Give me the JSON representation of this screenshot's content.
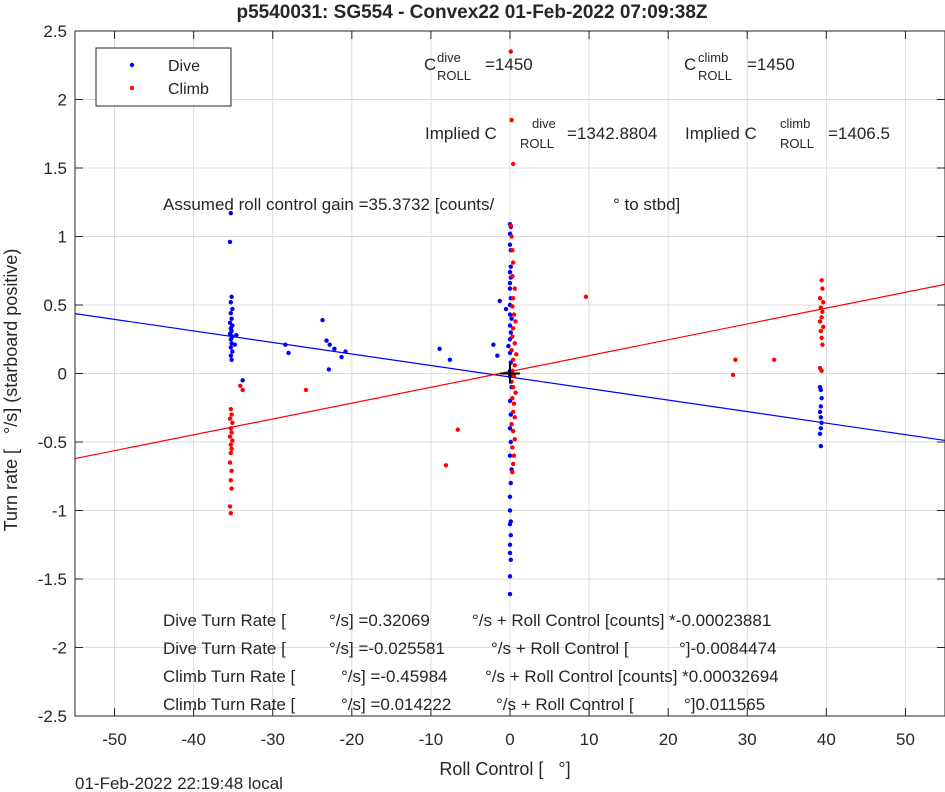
{
  "chart_data": {
    "type": "scatter",
    "title": "p5540031: SG554 - Convex22 01-Feb-2022 07:09:38Z",
    "xlabel": "Roll Control [   °]",
    "ylabel": "Turn rate [   °/s] (starboard positive)",
    "xlim": [
      -55,
      55
    ],
    "ylim": [
      -2.5,
      2.5
    ],
    "xticks": [
      -50,
      -40,
      -30,
      -20,
      -10,
      0,
      10,
      20,
      30,
      40,
      50
    ],
    "yticks": [
      -2.5,
      -2,
      -1.5,
      -1,
      -0.5,
      0,
      0.5,
      1,
      1.5,
      2,
      2.5
    ],
    "xtick_labels": [
      "-50",
      "-40",
      "-30",
      "-20",
      "-10",
      "0",
      "10",
      "20",
      "30",
      "40",
      "50"
    ],
    "ytick_labels": [
      "-2.5",
      "-2",
      "-1.5",
      "-1",
      "-0.5",
      "0",
      "0.5",
      "1",
      "1.5",
      "2",
      "2.5"
    ],
    "grid": true,
    "legend": {
      "placement": "top-left",
      "entries": [
        "Dive",
        "Climb"
      ]
    },
    "series": [
      {
        "name": "Dive",
        "color": "#0000ff",
        "points": [
          [
            -35.3,
            1.17
          ],
          [
            -35.4,
            0.96
          ],
          [
            -35.2,
            0.56
          ],
          [
            -35.3,
            0.52
          ],
          [
            -35.1,
            0.47
          ],
          [
            -35.3,
            0.44
          ],
          [
            -35.2,
            0.4
          ],
          [
            -35.4,
            0.37
          ],
          [
            -35.1,
            0.35
          ],
          [
            -35.3,
            0.33
          ],
          [
            -35.2,
            0.31
          ],
          [
            -35.4,
            0.29
          ],
          [
            -35.1,
            0.27
          ],
          [
            -35.3,
            0.25
          ],
          [
            -35.2,
            0.22
          ],
          [
            -35.3,
            0.19
          ],
          [
            -35.1,
            0.16
          ],
          [
            -35.3,
            0.13
          ],
          [
            -35.2,
            0.1
          ],
          [
            -34.6,
            0.28
          ],
          [
            -34.8,
            0.21
          ],
          [
            -33.8,
            -0.05
          ],
          [
            -28.4,
            0.21
          ],
          [
            -28.0,
            0.15
          ],
          [
            -23.7,
            0.39
          ],
          [
            -23.2,
            0.24
          ],
          [
            -22.8,
            0.21
          ],
          [
            -22.2,
            0.18
          ],
          [
            -22.9,
            0.03
          ],
          [
            -21.3,
            0.12
          ],
          [
            -20.8,
            0.16
          ],
          [
            -8.9,
            0.18
          ],
          [
            -7.6,
            0.1
          ],
          [
            -2.1,
            0.21
          ],
          [
            -1.6,
            0.13
          ],
          [
            -1.3,
            0.53
          ],
          [
            0.0,
            1.09
          ],
          [
            0.1,
            1.07
          ],
          [
            0.0,
            1.02
          ],
          [
            0.0,
            0.94
          ],
          [
            0.1,
            0.9
          ],
          [
            0.1,
            0.78
          ],
          [
            0.0,
            0.74
          ],
          [
            0.1,
            0.7
          ],
          [
            0.0,
            0.66
          ],
          [
            0.0,
            0.62
          ],
          [
            0.1,
            0.55
          ],
          [
            0.0,
            0.5
          ],
          [
            -0.5,
            0.47
          ],
          [
            0.0,
            0.43
          ],
          [
            0.2,
            0.4
          ],
          [
            0.0,
            0.35
          ],
          [
            0.1,
            0.3
          ],
          [
            0.0,
            0.25
          ],
          [
            -0.2,
            0.2
          ],
          [
            0.0,
            0.15
          ],
          [
            0.1,
            0.08
          ],
          [
            0.0,
            0.02
          ],
          [
            0.0,
            -0.02
          ],
          [
            0.2,
            -0.1
          ],
          [
            0.0,
            -0.2
          ],
          [
            0.1,
            -0.3
          ],
          [
            0.0,
            -0.4
          ],
          [
            0.1,
            -0.5
          ],
          [
            0.0,
            -0.6
          ],
          [
            0.2,
            -0.7
          ],
          [
            0.1,
            -0.8
          ],
          [
            0.0,
            -0.9
          ],
          [
            0.0,
            -1.0
          ],
          [
            0.1,
            -1.08
          ],
          [
            0.0,
            -1.1
          ],
          [
            0.1,
            -1.18
          ],
          [
            0.0,
            -1.25
          ],
          [
            0.0,
            -1.31
          ],
          [
            0.1,
            -1.36
          ],
          [
            0.0,
            -1.48
          ],
          [
            0.0,
            -1.61
          ],
          [
            39.2,
            -0.1
          ],
          [
            39.3,
            -0.12
          ],
          [
            39.4,
            -0.18
          ],
          [
            39.3,
            -0.24
          ],
          [
            39.2,
            -0.28
          ],
          [
            39.3,
            -0.32
          ],
          [
            39.4,
            -0.36
          ],
          [
            39.3,
            -0.4
          ],
          [
            39.2,
            -0.44
          ],
          [
            39.3,
            -0.53
          ]
        ]
      },
      {
        "name": "Climb",
        "color": "#ff0000",
        "points": [
          [
            -35.3,
            -0.26
          ],
          [
            -35.2,
            -0.3
          ],
          [
            -35.4,
            -0.33
          ],
          [
            -35.1,
            -0.36
          ],
          [
            -35.3,
            -0.4
          ],
          [
            -35.2,
            -0.43
          ],
          [
            -35.4,
            -0.46
          ],
          [
            -35.1,
            -0.49
          ],
          [
            -35.3,
            -0.52
          ],
          [
            -35.2,
            -0.55
          ],
          [
            -35.3,
            -0.58
          ],
          [
            -35.4,
            -0.65
          ],
          [
            -35.2,
            -0.71
          ],
          [
            -35.3,
            -0.78
          ],
          [
            -35.2,
            -0.84
          ],
          [
            -35.4,
            -0.97
          ],
          [
            -35.3,
            -1.02
          ],
          [
            -34.1,
            -0.09
          ],
          [
            -33.8,
            -0.12
          ],
          [
            -25.8,
            -0.12
          ],
          [
            -8.1,
            -0.67
          ],
          [
            -6.6,
            -0.41
          ],
          [
            0.1,
            2.35
          ],
          [
            0.2,
            1.85
          ],
          [
            0.4,
            1.53
          ],
          [
            0.1,
            1.08
          ],
          [
            0.2,
            1.0
          ],
          [
            0.3,
            0.9
          ],
          [
            0.4,
            0.81
          ],
          [
            0.3,
            0.71
          ],
          [
            0.6,
            0.62
          ],
          [
            0.4,
            0.55
          ],
          [
            0.3,
            0.49
          ],
          [
            0.5,
            0.43
          ],
          [
            0.7,
            0.38
          ],
          [
            0.4,
            0.33
          ],
          [
            0.3,
            0.27
          ],
          [
            0.6,
            0.22
          ],
          [
            0.2,
            0.17
          ],
          [
            0.8,
            0.14
          ],
          [
            0.4,
            0.1
          ],
          [
            0.6,
            0.06
          ],
          [
            0.3,
            0.02
          ],
          [
            0.5,
            -0.02
          ],
          [
            0.2,
            -0.06
          ],
          [
            0.4,
            -0.1
          ],
          [
            0.7,
            -0.14
          ],
          [
            0.3,
            -0.18
          ],
          [
            0.5,
            -0.22
          ],
          [
            0.4,
            -0.28
          ],
          [
            0.6,
            -0.32
          ],
          [
            0.2,
            -0.37
          ],
          [
            0.4,
            -0.42
          ],
          [
            0.6,
            -0.48
          ],
          [
            0.3,
            -0.54
          ],
          [
            0.5,
            -0.6
          ],
          [
            0.4,
            -0.66
          ],
          [
            0.3,
            -0.72
          ],
          [
            9.6,
            0.56
          ],
          [
            28.2,
            -0.01
          ],
          [
            28.5,
            0.1
          ],
          [
            33.4,
            0.1
          ],
          [
            39.4,
            0.68
          ],
          [
            39.5,
            0.62
          ],
          [
            39.2,
            0.55
          ],
          [
            39.6,
            0.52
          ],
          [
            39.3,
            0.48
          ],
          [
            39.5,
            0.45
          ],
          [
            39.4,
            0.41
          ],
          [
            39.2,
            0.38
          ],
          [
            39.6,
            0.34
          ],
          [
            39.3,
            0.31
          ],
          [
            39.4,
            0.26
          ],
          [
            39.5,
            0.21
          ],
          [
            39.2,
            0.04
          ],
          [
            39.4,
            0.02
          ]
        ]
      }
    ],
    "fit_lines": [
      {
        "name": "Dive fit",
        "color": "#0000ff",
        "x": [
          -55,
          55
        ],
        "y": [
          0.4371,
          -0.4887
        ]
      },
      {
        "name": "Climb fit",
        "color": "#ff0000",
        "x": [
          -55,
          55
        ],
        "y": [
          -0.6208,
          0.6505
        ]
      }
    ],
    "center_marker": {
      "x": 0,
      "y": 0
    },
    "annotations": {
      "c_dive": {
        "C": "C",
        "sup": "dive",
        "sub": "ROLL",
        "value": "=1450"
      },
      "c_climb": {
        "C": "C",
        "sup": "climb",
        "sub": "ROLL",
        "value": "=1450"
      },
      "implied_dive": {
        "prefix": "Implied C",
        "sup": "dive",
        "sub": "ROLL",
        "value": "=1342.8804"
      },
      "implied_climb": {
        "prefix": "Implied C",
        "sup": "climb",
        "sub": "ROLL",
        "value": "=1406.5"
      },
      "gain": [
        "Assumed roll control gain =35.3732 [counts/",
        "° to stbd]"
      ],
      "eq_lines": [
        [
          "Dive Turn Rate [",
          "°/s] =0.32069",
          "°/s + Roll Control [counts] *-0.00023881"
        ],
        [
          "Dive Turn Rate [",
          "°/s] =-0.025581",
          "°/s + Roll Control [",
          "°]-0.0084474"
        ],
        [
          "Climb Turn Rate [",
          "°/s] =-0.45984",
          "°/s + Roll Control [counts] *0.00032694"
        ],
        [
          "Climb Turn Rate [",
          "°/s] =0.014222",
          "°/s + Roll Control [",
          "°]0.011565"
        ]
      ]
    },
    "footer": "01-Feb-2022 22:19:48 local"
  }
}
